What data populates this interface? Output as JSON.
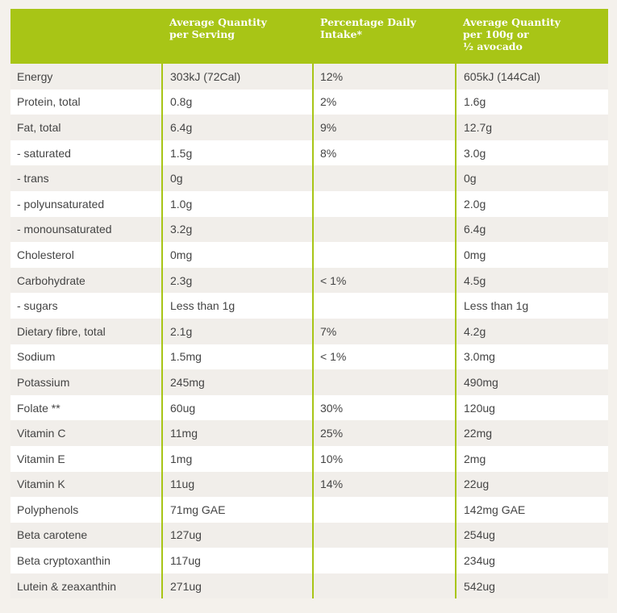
{
  "header": {
    "col1": "",
    "col2": "Average Quantity\nper Serving",
    "col3": "Percentage Daily\nIntake*",
    "col4": "Average Quantity\nper 100g or\n½ avocado"
  },
  "rows": [
    {
      "name": "Energy",
      "per_serving": "303kJ (72Cal)",
      "daily_intake": "12%",
      "per_100g": "605kJ (144Cal)"
    },
    {
      "name": "Protein, total",
      "per_serving": "0.8g",
      "daily_intake": "2%",
      "per_100g": "1.6g"
    },
    {
      "name": "Fat, total",
      "per_serving": "6.4g",
      "daily_intake": "9%",
      "per_100g": "12.7g"
    },
    {
      "name": "- saturated",
      "per_serving": "1.5g",
      "daily_intake": "8%",
      "per_100g": "3.0g"
    },
    {
      "name": "- trans",
      "per_serving": "0g",
      "daily_intake": "",
      "per_100g": "0g"
    },
    {
      "name": "- polyunsaturated",
      "per_serving": "1.0g",
      "daily_intake": "",
      "per_100g": "2.0g"
    },
    {
      "name": "- monounsaturated",
      "per_serving": "3.2g",
      "daily_intake": "",
      "per_100g": "6.4g"
    },
    {
      "name": "Cholesterol",
      "per_serving": "0mg",
      "daily_intake": "",
      "per_100g": "0mg"
    },
    {
      "name": "Carbohydrate",
      "per_serving": "2.3g",
      "daily_intake": "< 1%",
      "per_100g": "4.5g"
    },
    {
      "name": "- sugars",
      "per_serving": "Less than 1g",
      "daily_intake": "",
      "per_100g": "Less than 1g"
    },
    {
      "name": "Dietary fibre, total",
      "per_serving": "2.1g",
      "daily_intake": "7%",
      "per_100g": "4.2g"
    },
    {
      "name": "Sodium",
      "per_serving": "1.5mg",
      "daily_intake": "< 1%",
      "per_100g": "3.0mg"
    },
    {
      "name": "Potassium",
      "per_serving": "245mg",
      "daily_intake": "",
      "per_100g": "490mg"
    },
    {
      "name": "Folate **",
      "per_serving": "60ug",
      "daily_intake": "30%",
      "per_100g": "120ug"
    },
    {
      "name": "Vitamin C",
      "per_serving": "11mg",
      "daily_intake": "25%",
      "per_100g": "22mg"
    },
    {
      "name": "Vitamin E",
      "per_serving": "1mg",
      "daily_intake": "10%",
      "per_100g": "2mg"
    },
    {
      "name": "Vitamin K",
      "per_serving": "11ug",
      "daily_intake": "14%",
      "per_100g": "22ug"
    },
    {
      "name": "Polyphenols",
      "per_serving": "71mg GAE",
      "daily_intake": "",
      "per_100g": "142mg GAE"
    },
    {
      "name": "Beta carotene",
      "per_serving": "127ug",
      "daily_intake": "",
      "per_100g": "254ug"
    },
    {
      "name": "Beta cryptoxanthin",
      "per_serving": "117ug",
      "daily_intake": "",
      "per_100g": "234ug"
    },
    {
      "name": "Lutein & zeaxanthin",
      "per_serving": "271ug",
      "daily_intake": "",
      "per_100g": "542ug"
    }
  ],
  "colors": {
    "accent": "#a8c516",
    "header_text": "#ffffff",
    "body_text": "#444444",
    "row_shaded": "#f1eeea",
    "row_plain": "#ffffff",
    "page_background": "#f4f1ec"
  }
}
